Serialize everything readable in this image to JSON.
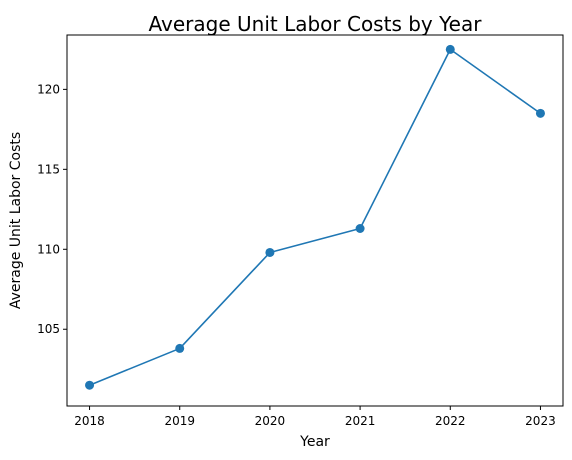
{
  "chart_data": {
    "type": "line",
    "title": "Average Unit Labor Costs by Year",
    "xlabel": "Year",
    "ylabel": "Average Unit Labor Costs",
    "x": [
      "2018",
      "2019",
      "2020",
      "2021",
      "2022",
      "2023"
    ],
    "series": [
      {
        "values": [
          101.5,
          103.8,
          109.8,
          111.3,
          122.5,
          118.5
        ]
      }
    ],
    "xlim": [
      2017.75,
      2023.25
    ],
    "ylim": [
      100.2,
      123.4
    ],
    "yticks": [
      105,
      110,
      115,
      120
    ],
    "grid": false,
    "legend": "none",
    "colors": {
      "series": "#1f77b4"
    },
    "marker": "circle"
  }
}
